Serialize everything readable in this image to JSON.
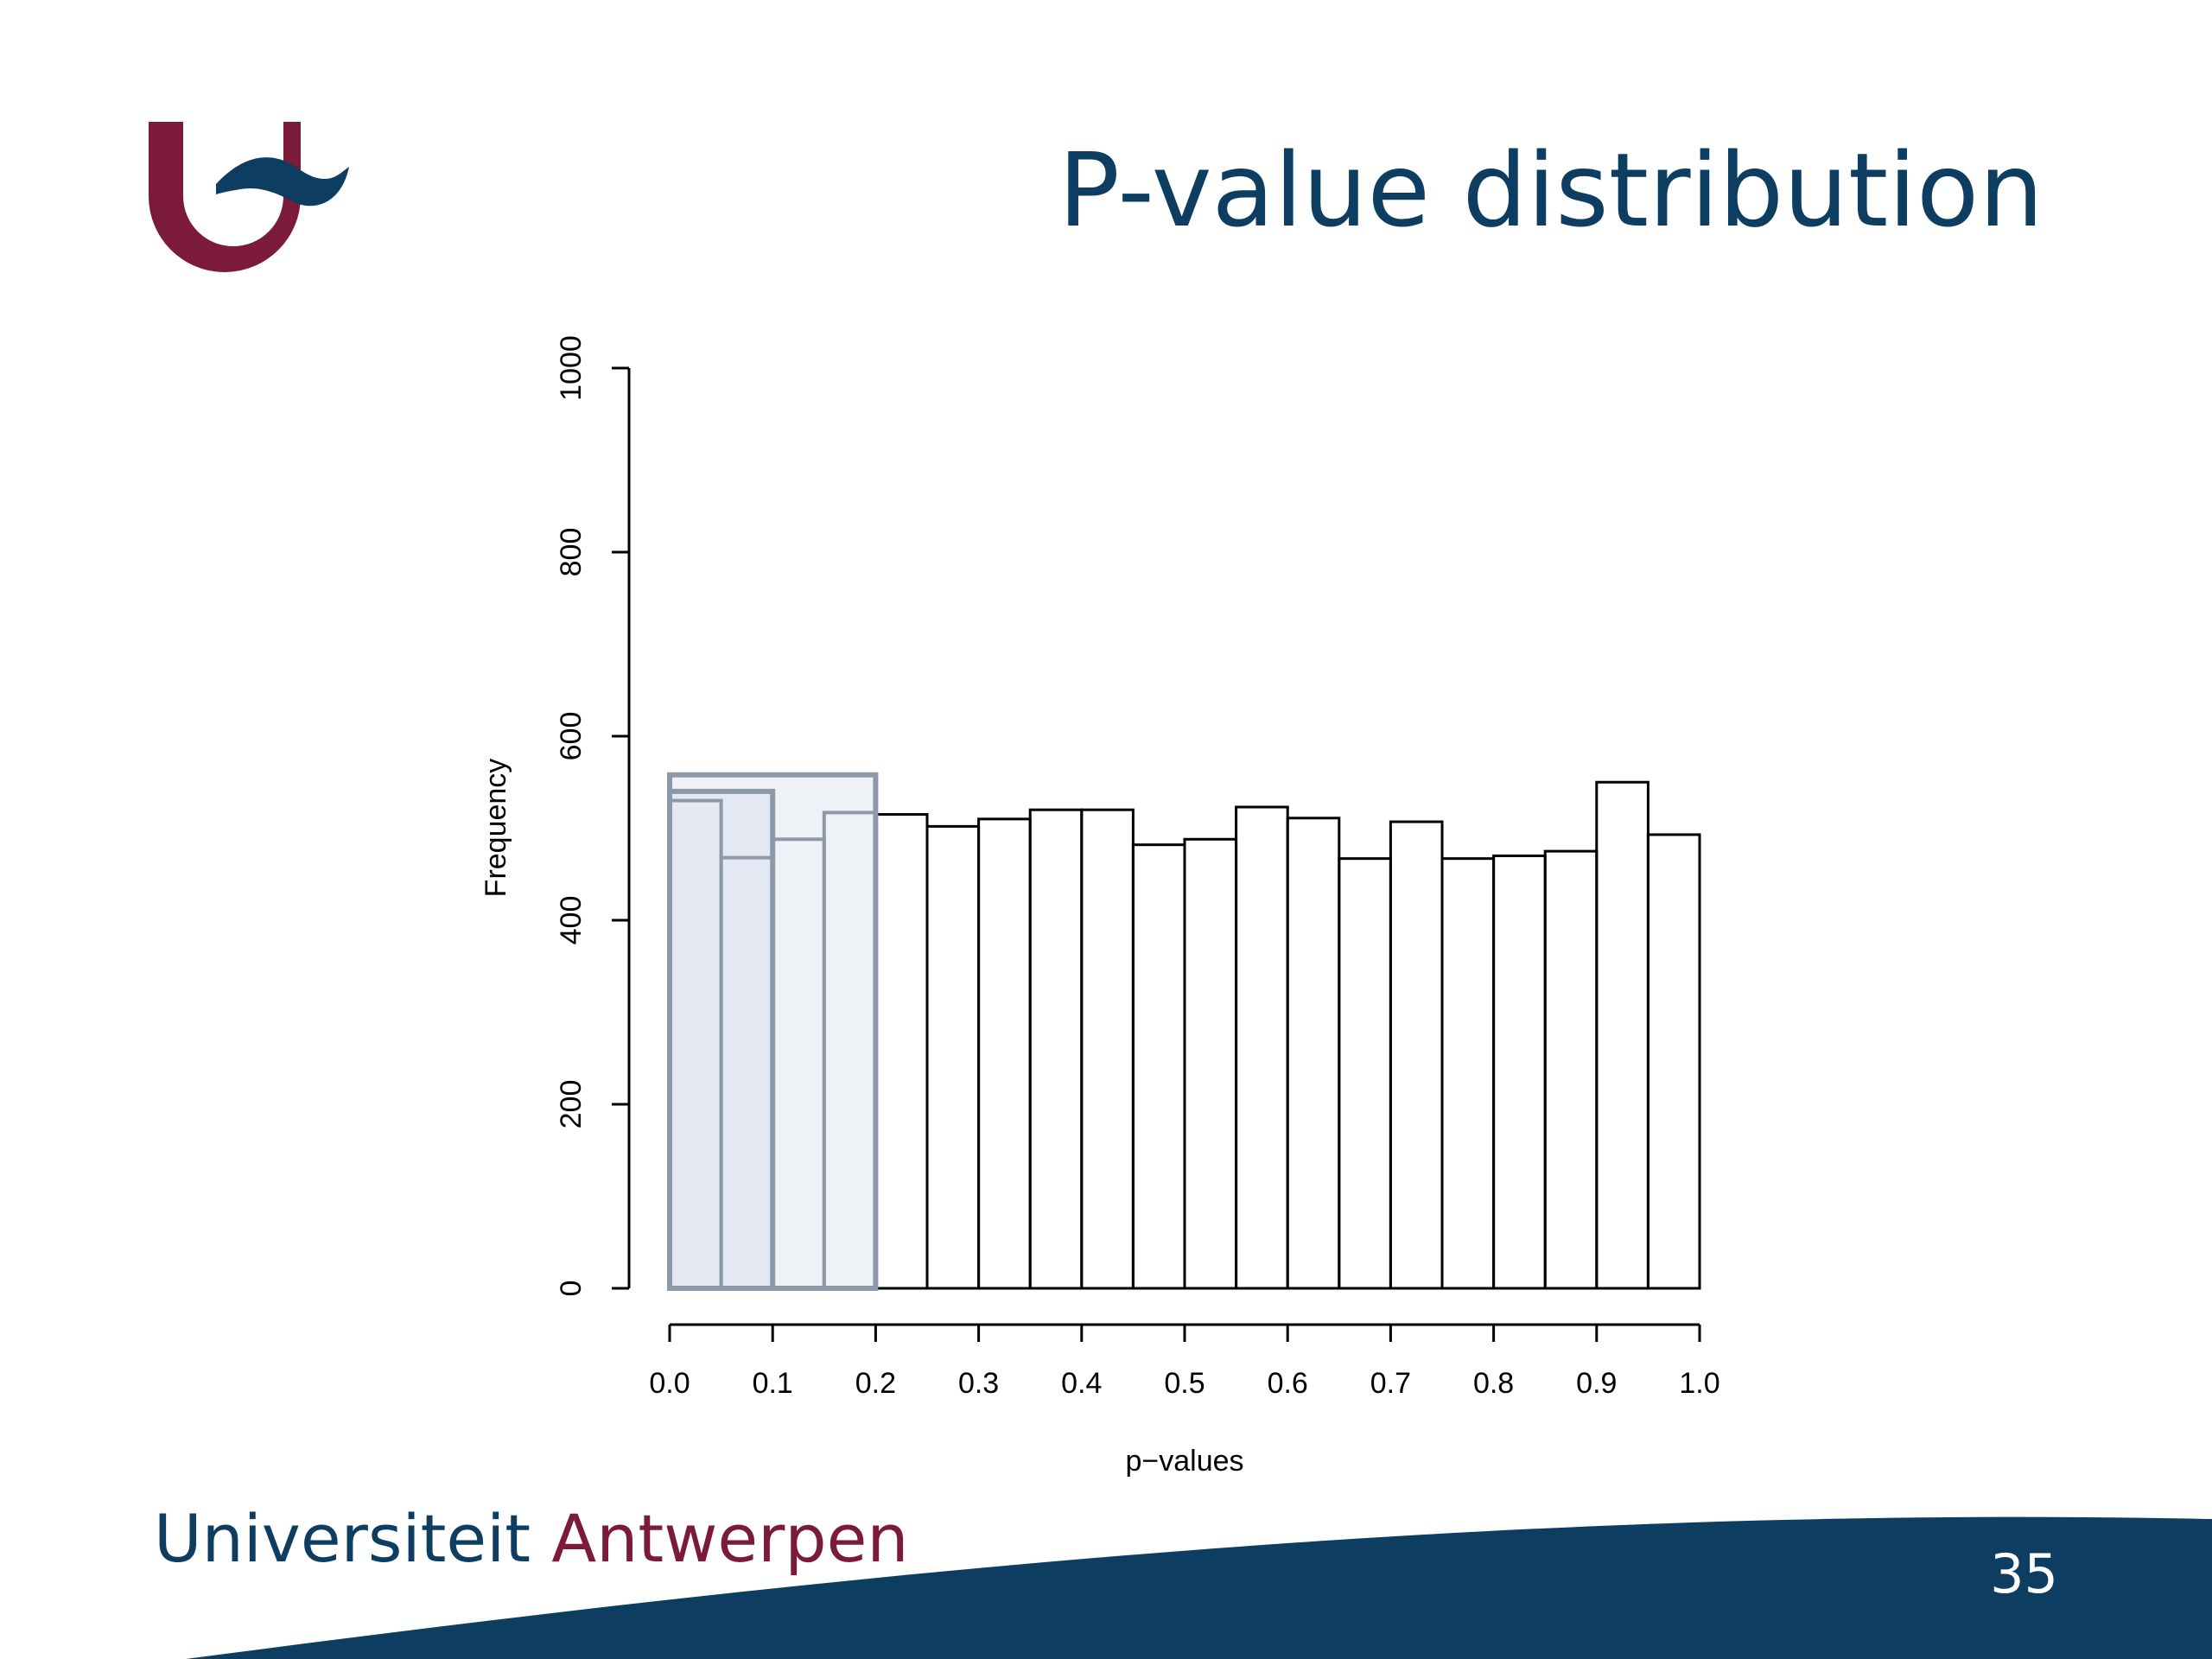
{
  "slide": {
    "title": "P-value distribution",
    "university_name_part1": "Universiteit",
    "university_name_part2": "Antwerpen",
    "slide_number": "35"
  },
  "colors": {
    "brand_blue": "#0d3d61",
    "brand_maroon": "#7b1a3a",
    "highlight_fill_outer": "#eef2f6",
    "highlight_fill_inner": "#e4e8f2",
    "highlight_stroke": "#8d99a8"
  },
  "chart_data": {
    "type": "bar",
    "xlabel": "p−values",
    "ylabel": "Frequency",
    "xlim": [
      0,
      1
    ],
    "ylim": [
      0,
      1000
    ],
    "bin_width": 0.05,
    "x_ticks": [
      "0.0",
      "0.1",
      "0.2",
      "0.3",
      "0.4",
      "0.5",
      "0.6",
      "0.7",
      "0.8",
      "0.9",
      "1.0"
    ],
    "y_ticks": [
      "0",
      "200",
      "400",
      "600",
      "800",
      "1000"
    ],
    "bins": [
      {
        "x0": 0.0,
        "x1": 0.05,
        "value": 530
      },
      {
        "x0": 0.05,
        "x1": 0.1,
        "value": 468
      },
      {
        "x0": 0.1,
        "x1": 0.15,
        "value": 488
      },
      {
        "x0": 0.15,
        "x1": 0.2,
        "value": 517
      },
      {
        "x0": 0.2,
        "x1": 0.25,
        "value": 515
      },
      {
        "x0": 0.25,
        "x1": 0.3,
        "value": 502
      },
      {
        "x0": 0.3,
        "x1": 0.35,
        "value": 510
      },
      {
        "x0": 0.35,
        "x1": 0.4,
        "value": 520
      },
      {
        "x0": 0.4,
        "x1": 0.45,
        "value": 520
      },
      {
        "x0": 0.45,
        "x1": 0.5,
        "value": 482
      },
      {
        "x0": 0.5,
        "x1": 0.55,
        "value": 488
      },
      {
        "x0": 0.55,
        "x1": 0.6,
        "value": 523
      },
      {
        "x0": 0.6,
        "x1": 0.65,
        "value": 511
      },
      {
        "x0": 0.65,
        "x1": 0.7,
        "value": 467
      },
      {
        "x0": 0.7,
        "x1": 0.75,
        "value": 507
      },
      {
        "x0": 0.75,
        "x1": 0.8,
        "value": 467
      },
      {
        "x0": 0.8,
        "x1": 0.85,
        "value": 470
      },
      {
        "x0": 0.85,
        "x1": 0.9,
        "value": 475
      },
      {
        "x0": 0.9,
        "x1": 0.95,
        "value": 550
      },
      {
        "x0": 0.95,
        "x1": 1.0,
        "value": 493
      }
    ],
    "highlights": [
      {
        "x0": 0.0,
        "x1": 0.2,
        "value": 558
      },
      {
        "x0": 0.0,
        "x1": 0.1,
        "value": 540
      }
    ]
  }
}
